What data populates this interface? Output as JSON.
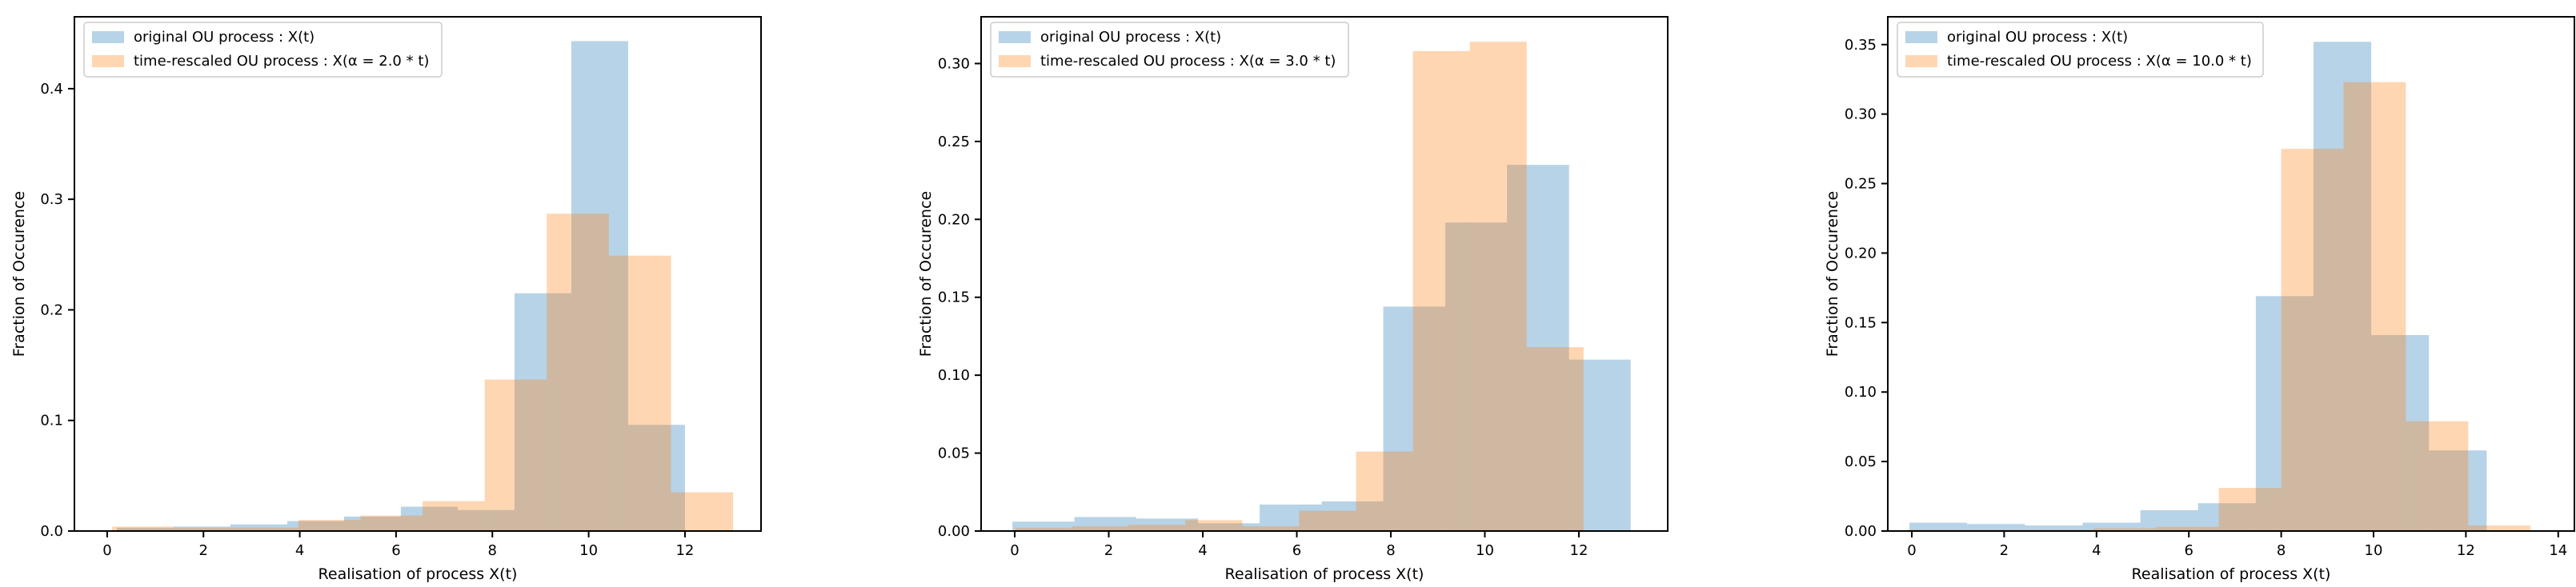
{
  "figure": {
    "kind": "matplotlib-histogram-figure",
    "num_subplots": 3
  },
  "chart_data": [
    {
      "type": "bar",
      "subtype": "histogram-overlay",
      "title": "",
      "xlabel": "Realisation of process X(t)",
      "ylabel": "Fraction of Occurence",
      "grid": false,
      "legend_position": "upper left",
      "xlim": [
        -0.68,
        13.58
      ],
      "ylim": [
        0,
        0.465
      ],
      "xticks": [
        0,
        2,
        4,
        6,
        8,
        10,
        12
      ],
      "xtick_labels": [
        "0",
        "2",
        "4",
        "6",
        "8",
        "10",
        "12"
      ],
      "yticks": [
        0.0,
        0.1,
        0.2,
        0.3,
        0.4
      ],
      "ytick_labels": [
        "0.0",
        "0.1",
        "0.2",
        "0.3",
        "0.4"
      ],
      "series": [
        {
          "name": "original OU process : X(t)",
          "color": "#1f77b4",
          "alpha": 0.32,
          "bin_edges": [
            0.2,
            1.38,
            2.56,
            3.74,
            4.92,
            6.1,
            7.28,
            8.46,
            9.64,
            10.82,
            12.0
          ],
          "heights": [
            0.003,
            0.004,
            0.006,
            0.009,
            0.013,
            0.022,
            0.019,
            0.215,
            0.443,
            0.096
          ]
        },
        {
          "name": "time-rescaled OU process : X(α = 2.0 * t)",
          "color": "#ff7f0e",
          "alpha": 0.32,
          "bin_edges": [
            0.1,
            1.39,
            2.68,
            3.97,
            5.26,
            6.55,
            7.84,
            9.13,
            10.42,
            11.71,
            13.0
          ],
          "heights": [
            0.004,
            0.003,
            0.003,
            0.01,
            0.014,
            0.027,
            0.137,
            0.287,
            0.249,
            0.035
          ]
        }
      ]
    },
    {
      "type": "bar",
      "subtype": "histogram-overlay",
      "title": "",
      "xlabel": "Realisation of process X(t)",
      "ylabel": "Fraction of Occurence",
      "grid": false,
      "legend_position": "upper left",
      "xlim": [
        -0.715,
        13.89
      ],
      "ylim": [
        0,
        0.33
      ],
      "xticks": [
        0,
        2,
        4,
        6,
        8,
        10,
        12
      ],
      "xtick_labels": [
        "0",
        "2",
        "4",
        "6",
        "8",
        "10",
        "12"
      ],
      "yticks": [
        0.0,
        0.05,
        0.1,
        0.15,
        0.2,
        0.25,
        0.3
      ],
      "ytick_labels": [
        "0.00",
        "0.05",
        "0.10",
        "0.15",
        "0.20",
        "0.25",
        "0.30"
      ],
      "series": [
        {
          "name": "original OU process : X(t)",
          "color": "#1f77b4",
          "alpha": 0.32,
          "bin_edges": [
            -0.05,
            1.27,
            2.58,
            3.9,
            5.21,
            6.53,
            7.84,
            9.16,
            10.47,
            11.79,
            13.1
          ],
          "heights": [
            0.006,
            0.009,
            0.008,
            0.005,
            0.017,
            0.019,
            0.144,
            0.198,
            0.235,
            0.11
          ]
        },
        {
          "name": "time-rescaled OU process : X(α = 3.0 * t)",
          "color": "#ff7f0e",
          "alpha": 0.32,
          "bin_edges": [
            0.01,
            1.22,
            2.42,
            3.63,
            4.84,
            6.05,
            7.26,
            8.47,
            9.68,
            10.89,
            12.1
          ],
          "heights": [
            0.002,
            0.003,
            0.004,
            0.007,
            0.003,
            0.013,
            0.051,
            0.308,
            0.314,
            0.118
          ]
        }
      ]
    },
    {
      "type": "bar",
      "subtype": "histogram-overlay",
      "title": "",
      "xlabel": "Realisation of process X(t)",
      "ylabel": "Fraction of Occurence",
      "grid": false,
      "legend_position": "upper left",
      "xlim": [
        -0.52,
        14.35
      ],
      "ylim": [
        0,
        0.37
      ],
      "xticks": [
        0,
        2,
        4,
        6,
        8,
        10,
        12,
        14
      ],
      "xtick_labels": [
        "0",
        "2",
        "4",
        "6",
        "8",
        "10",
        "12",
        "14"
      ],
      "yticks": [
        0.0,
        0.05,
        0.1,
        0.15,
        0.2,
        0.25,
        0.3,
        0.35
      ],
      "ytick_labels": [
        "0.00",
        "0.05",
        "0.10",
        "0.15",
        "0.20",
        "0.25",
        "0.30",
        "0.35"
      ],
      "series": [
        {
          "name": "original OU process : X(t)",
          "color": "#1f77b4",
          "alpha": 0.32,
          "bin_edges": [
            -0.05,
            1.2,
            2.45,
            3.7,
            4.95,
            6.2,
            7.45,
            8.7,
            9.95,
            11.2,
            12.45
          ],
          "heights": [
            0.006,
            0.005,
            0.004,
            0.006,
            0.015,
            0.02,
            0.169,
            0.352,
            0.141,
            0.058
          ]
        },
        {
          "name": "time-rescaled OU process : X(α = 10.0 * t)",
          "color": "#ff7f0e",
          "alpha": 0.32,
          "bin_edges": [
            -0.1,
            1.25,
            2.6,
            3.95,
            5.3,
            6.65,
            8.0,
            9.35,
            10.7,
            12.05,
            13.4
          ],
          "heights": [
            0.001,
            0.001,
            0.001,
            0.002,
            0.003,
            0.031,
            0.275,
            0.323,
            0.079,
            0.004
          ]
        }
      ]
    }
  ]
}
